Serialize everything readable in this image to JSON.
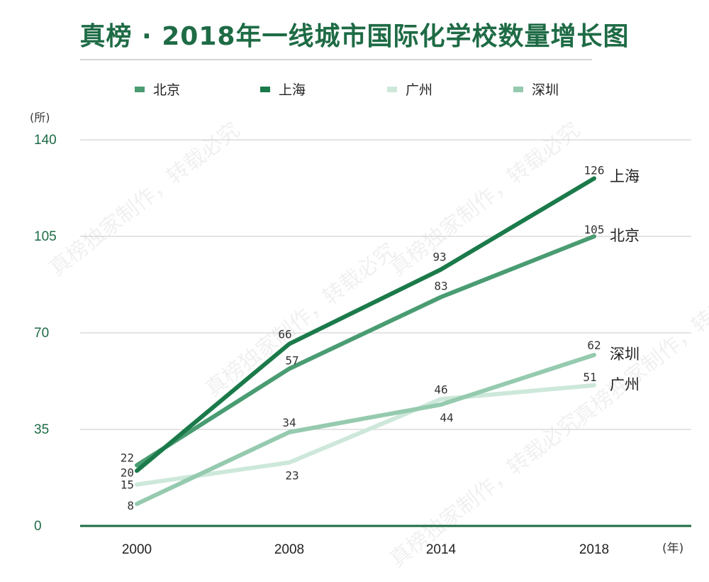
{
  "title": "真榜 · 2018年一线城市国际化学校数量增长图",
  "colors": {
    "title": "#1e6b45",
    "axis": "#1d6b44",
    "tick": "#1d6b44",
    "grid": "#c8c8c8",
    "label": "#3a3a3a"
  },
  "chart_data": {
    "type": "line",
    "title": "真榜 · 2018年一线城市国际化学校数量增长图",
    "x_unit": "(年)",
    "y_unit": "(所)",
    "x": [
      "2000",
      "2008",
      "2014",
      "2018"
    ],
    "ylim": [
      0,
      140
    ],
    "yticks": [
      0,
      35,
      70,
      105,
      140
    ],
    "grid": true,
    "legend_position": "top",
    "series": [
      {
        "name": "北京",
        "values": [
          22,
          57,
          83,
          105
        ],
        "color": "#4a9c72",
        "end_label": "北京"
      },
      {
        "name": "上海",
        "values": [
          20,
          66,
          93,
          126
        ],
        "color": "#1b7a4a",
        "end_label": "上海"
      },
      {
        "name": "广州",
        "values": [
          15,
          23,
          46,
          51
        ],
        "color": "#cde8da",
        "end_label": "广州"
      },
      {
        "name": "深圳",
        "values": [
          8,
          34,
          44,
          62
        ],
        "color": "#95caaf",
        "end_label": "深圳"
      }
    ]
  },
  "watermark": "真榜独家制作，转载必究"
}
